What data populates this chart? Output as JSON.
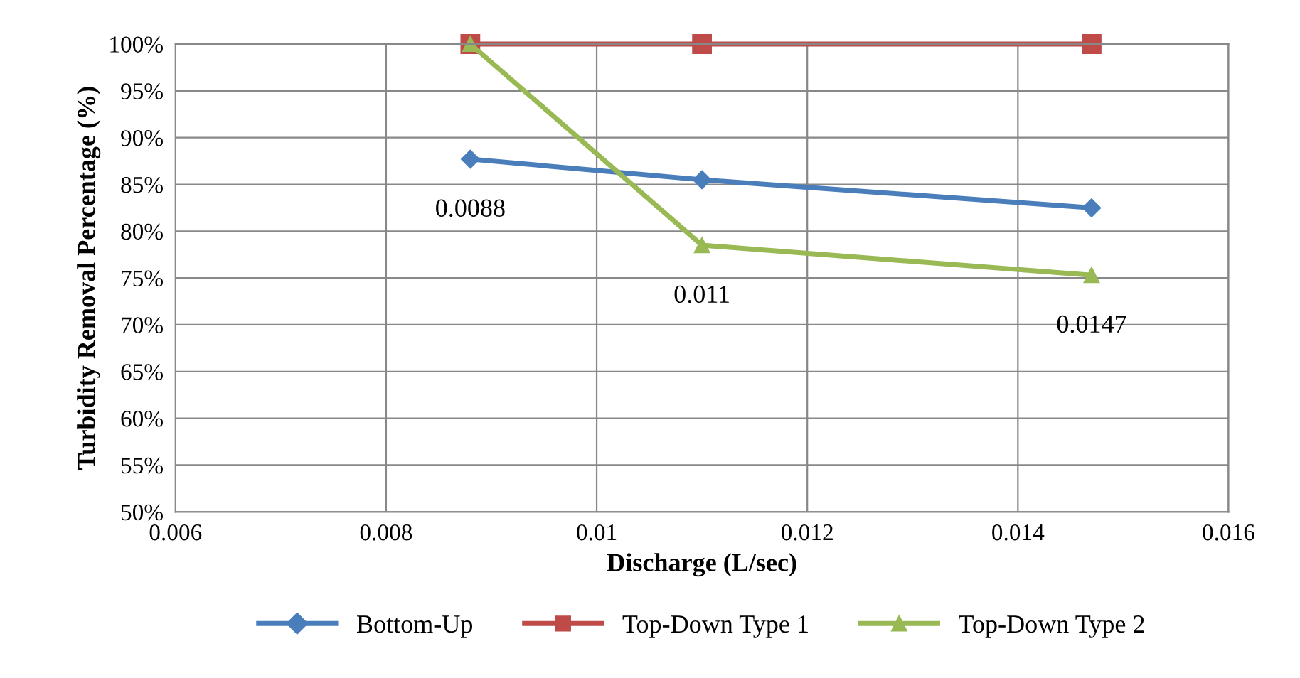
{
  "chart_data": {
    "type": "line",
    "xlabel": "Discharge (L/sec)",
    "ylabel": "Turbidity Removal Percentage (%)",
    "xlim": [
      0.006,
      0.016
    ],
    "xticks": [
      0.006,
      0.008,
      0.01,
      0.012,
      0.014,
      0.016
    ],
    "ylim": [
      50,
      100
    ],
    "yticks": [
      {
        "value": 50,
        "label": "50%"
      },
      {
        "value": 55,
        "label": "55%"
      },
      {
        "value": 60,
        "label": "60%"
      },
      {
        "value": 65,
        "label": "65%"
      },
      {
        "value": 70,
        "label": "70%"
      },
      {
        "value": 75,
        "label": "75%"
      },
      {
        "value": 80,
        "label": "80%"
      },
      {
        "value": 85,
        "label": "85%"
      },
      {
        "value": 90,
        "label": "90%"
      },
      {
        "value": 95,
        "label": "95%"
      },
      {
        "value": 100,
        "label": "100%"
      }
    ],
    "x": [
      0.0088,
      0.011,
      0.0147
    ],
    "series": [
      {
        "name": "Bottom-Up",
        "color": "#4a7ebb",
        "marker": "diamond",
        "values": [
          87.7,
          85.5,
          82.5
        ]
      },
      {
        "name": "Top-Down Type 1",
        "color": "#be4b48",
        "marker": "square",
        "values": [
          100,
          100,
          100
        ]
      },
      {
        "name": "Top-Down Type 2",
        "color": "#98b954",
        "marker": "triangle",
        "values": [
          100,
          78.5,
          75.3
        ]
      }
    ],
    "annotations": [
      {
        "text": "0.0088",
        "x": 0.0088,
        "y": 87.7
      },
      {
        "text": "0.011",
        "x": 0.011,
        "y": 78.5
      },
      {
        "text": "0.0147",
        "x": 0.0147,
        "y": 75.3
      }
    ],
    "grid": true,
    "legend": "bottom"
  }
}
